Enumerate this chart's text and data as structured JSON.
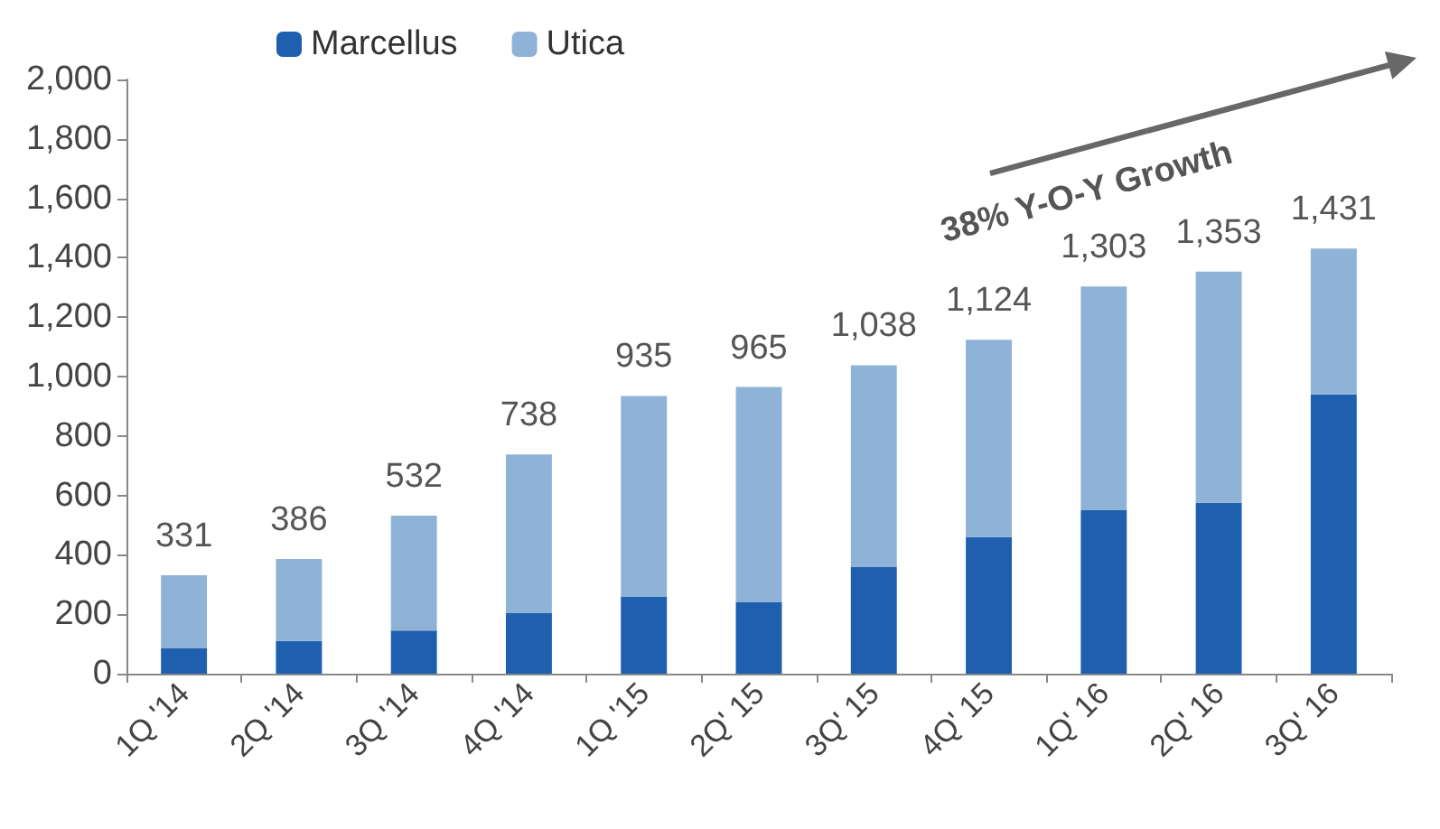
{
  "chart_data": {
    "type": "bar",
    "stacked": true,
    "categories": [
      "1Q '14",
      "2Q '14",
      "3Q '14",
      "4Q '14",
      "1Q '15",
      "2Q' 15",
      "3Q' 15",
      "4Q' 15",
      "1Q' 16",
      "2Q' 16",
      "3Q' 16"
    ],
    "series": [
      {
        "name": "Marcellus",
        "color": "#1f5fb0",
        "values": [
          85,
          110,
          145,
          205,
          260,
          240,
          360,
          460,
          550,
          575,
          940
        ]
      },
      {
        "name": "Utica",
        "color": "#8fb3d6",
        "values": [
          246,
          276,
          387,
          533,
          675,
          725,
          678,
          664,
          753,
          778,
          491
        ]
      }
    ],
    "totals": [
      "331",
      "386",
      "532",
      "738",
      "935",
      "965",
      "1,038",
      "1,124",
      "1,303",
      "1,353",
      "1,431"
    ],
    "ylim": [
      0,
      2000
    ],
    "yticks": [
      0,
      200,
      400,
      600,
      800,
      {
        "value": 1000,
        "label": "1,000"
      },
      {
        "value": 1200,
        "label": "1,200"
      },
      {
        "value": 1400,
        "label": "1,400"
      },
      {
        "value": 1600,
        "label": "1,600"
      },
      {
        "value": 1800,
        "label": "1,800"
      },
      {
        "value": 2000,
        "label": "2,000"
      }
    ],
    "grid": false,
    "legend": "top left",
    "annotations": [
      "38% Y-O-Y Growth"
    ]
  }
}
